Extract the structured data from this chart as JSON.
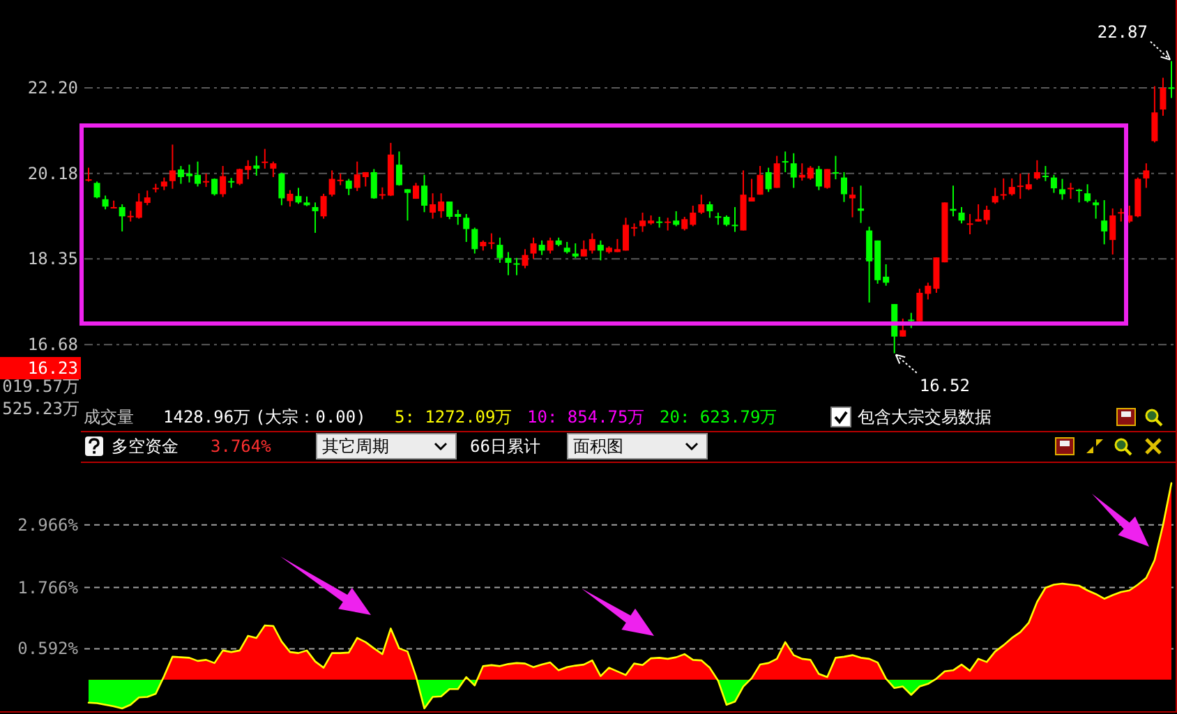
{
  "chart_data": [
    {
      "type": "candlestick",
      "categories": [
        null,
        null,
        null,
        null,
        null,
        null,
        null,
        null,
        null,
        null,
        null,
        null,
        null,
        null,
        null,
        null,
        null,
        null,
        null,
        null,
        null,
        null,
        null,
        null,
        null,
        null,
        null,
        null,
        null,
        null,
        null,
        null,
        null,
        null,
        null,
        null,
        null,
        null,
        null,
        null,
        null,
        null,
        null,
        null,
        null,
        null,
        null,
        null,
        null,
        null,
        null,
        null,
        null,
        null,
        null,
        null,
        null,
        null,
        null,
        null,
        null,
        null,
        null,
        null,
        null,
        null,
        null,
        null,
        null,
        null,
        null,
        null,
        null,
        null,
        null,
        null,
        null,
        null,
        null,
        null,
        null,
        null,
        null,
        null,
        null,
        null,
        null,
        null,
        null,
        null,
        null,
        null,
        null,
        null,
        null,
        null,
        null,
        null,
        null,
        null,
        null,
        null,
        null,
        null,
        null,
        null,
        null,
        null,
        null,
        null,
        null,
        null,
        null,
        null,
        null,
        null,
        null,
        null,
        null,
        null,
        null,
        null,
        null,
        null,
        null,
        null,
        null,
        null,
        null,
        null
      ],
      "ohlc": [
        [
          20.02,
          20.31,
          20.0,
          20.05
        ],
        [
          19.97,
          20.0,
          19.63,
          19.65
        ],
        [
          19.61,
          19.69,
          19.39,
          19.45
        ],
        [
          19.42,
          19.58,
          19.41,
          19.44
        ],
        [
          19.44,
          19.5,
          18.92,
          19.24
        ],
        [
          19.23,
          19.36,
          19.13,
          19.25
        ],
        [
          19.21,
          19.74,
          19.19,
          19.56
        ],
        [
          19.53,
          19.8,
          19.48,
          19.65
        ],
        [
          19.84,
          19.95,
          19.76,
          19.86
        ],
        [
          19.89,
          20.09,
          19.81,
          20.0
        ],
        [
          20.01,
          20.84,
          19.84,
          20.25
        ],
        [
          20.27,
          20.35,
          19.95,
          20.1
        ],
        [
          20.18,
          20.38,
          19.98,
          20.12
        ],
        [
          20.15,
          20.45,
          19.89,
          19.95
        ],
        [
          19.99,
          20.18,
          19.88,
          20.01
        ],
        [
          20.06,
          20.07,
          19.69,
          19.72
        ],
        [
          19.72,
          20.35,
          19.66,
          20.12
        ],
        [
          20.01,
          20.08,
          19.86,
          19.99
        ],
        [
          19.95,
          20.29,
          19.92,
          20.28
        ],
        [
          20.26,
          20.48,
          20.05,
          20.35
        ],
        [
          20.36,
          20.58,
          20.13,
          20.29
        ],
        [
          20.42,
          20.74,
          20.29,
          20.45
        ],
        [
          20.29,
          20.45,
          20.1,
          20.41
        ],
        [
          20.18,
          20.2,
          19.48,
          19.63
        ],
        [
          19.57,
          19.81,
          19.45,
          19.73
        ],
        [
          19.68,
          19.86,
          19.51,
          19.54
        ],
        [
          19.54,
          19.67,
          19.46,
          19.48
        ],
        [
          19.44,
          19.54,
          18.89,
          19.35
        ],
        [
          19.24,
          19.73,
          19.19,
          19.68
        ],
        [
          19.71,
          20.25,
          19.67,
          20.06
        ],
        [
          20.02,
          20.18,
          19.92,
          20.04
        ],
        [
          20.02,
          20.06,
          19.7,
          19.84
        ],
        [
          19.86,
          20.45,
          19.79,
          20.16
        ],
        [
          20.1,
          20.21,
          19.89,
          20.21
        ],
        [
          20.21,
          20.28,
          19.62,
          19.63
        ],
        [
          19.7,
          19.87,
          19.61,
          19.72
        ],
        [
          19.69,
          20.88,
          19.68,
          20.61
        ],
        [
          20.38,
          20.68,
          19.91,
          19.92
        ],
        [
          19.83,
          19.83,
          19.15,
          19.75
        ],
        [
          19.62,
          19.97,
          19.62,
          19.91
        ],
        [
          19.91,
          20.15,
          19.33,
          19.47
        ],
        [
          19.32,
          19.74,
          19.19,
          19.5
        ],
        [
          19.35,
          19.74,
          19.21,
          19.56
        ],
        [
          19.56,
          19.56,
          19.18,
          19.23
        ],
        [
          19.29,
          19.38,
          19.06,
          19.23
        ],
        [
          19.21,
          19.29,
          18.7,
          18.97
        ],
        [
          18.97,
          19.0,
          18.46,
          18.55
        ],
        [
          18.61,
          18.73,
          18.52,
          18.7
        ],
        [
          18.67,
          18.88,
          18.55,
          18.69
        ],
        [
          18.64,
          18.79,
          18.27,
          18.37
        ],
        [
          18.37,
          18.49,
          18.02,
          18.27
        ],
        [
          18.26,
          18.37,
          18.02,
          18.24
        ],
        [
          18.21,
          18.55,
          18.16,
          18.43
        ],
        [
          18.46,
          18.79,
          18.35,
          18.67
        ],
        [
          18.64,
          18.73,
          18.43,
          18.52
        ],
        [
          18.52,
          18.79,
          18.46,
          18.73
        ],
        [
          18.73,
          18.79,
          18.61,
          18.64
        ],
        [
          18.58,
          18.7,
          18.46,
          18.49
        ],
        [
          18.46,
          18.67,
          18.37,
          18.4
        ],
        [
          18.4,
          18.73,
          18.4,
          18.55
        ],
        [
          18.52,
          18.88,
          18.46,
          18.76
        ],
        [
          18.64,
          18.73,
          18.32,
          18.52
        ],
        [
          18.49,
          18.61,
          18.46,
          18.58
        ],
        [
          18.49,
          18.76,
          18.49,
          18.55
        ],
        [
          18.52,
          19.21,
          18.52,
          19.06
        ],
        [
          18.99,
          19.09,
          18.82,
          19.01
        ],
        [
          19.03,
          19.32,
          18.91,
          19.15
        ],
        [
          19.09,
          19.26,
          19.06,
          19.15
        ],
        [
          19.13,
          19.23,
          19.0,
          19.11
        ],
        [
          19.11,
          19.21,
          18.94,
          19.13
        ],
        [
          19.15,
          19.35,
          19.03,
          19.06
        ],
        [
          18.97,
          19.23,
          18.94,
          19.18
        ],
        [
          19.06,
          19.47,
          19.03,
          19.32
        ],
        [
          19.32,
          19.71,
          19.29,
          19.5
        ],
        [
          19.5,
          19.56,
          19.21,
          19.35
        ],
        [
          19.24,
          19.32,
          19.06,
          19.22
        ],
        [
          19.23,
          19.26,
          19.03,
          19.06
        ],
        [
          19.06,
          19.44,
          18.91,
          19.04
        ],
        [
          18.94,
          20.25,
          18.94,
          19.71
        ],
        [
          19.56,
          20.06,
          19.56,
          19.65
        ],
        [
          19.71,
          20.35,
          19.71,
          20.15
        ],
        [
          20.21,
          20.31,
          19.77,
          19.83
        ],
        [
          19.86,
          20.58,
          19.86,
          20.41
        ],
        [
          20.46,
          20.68,
          20.21,
          20.43
        ],
        [
          20.41,
          20.64,
          19.86,
          20.09
        ],
        [
          20.09,
          20.41,
          20.02,
          20.15
        ],
        [
          20.07,
          20.35,
          20.04,
          20.31
        ],
        [
          20.28,
          20.35,
          19.81,
          19.89
        ],
        [
          19.86,
          20.28,
          19.84,
          20.28
        ],
        [
          20.21,
          20.58,
          20.05,
          20.19
        ],
        [
          20.09,
          20.21,
          19.55,
          19.72
        ],
        [
          19.63,
          19.88,
          19.22,
          19.71
        ],
        [
          19.41,
          19.91,
          19.1,
          19.36
        ],
        [
          18.94,
          19.02,
          17.48,
          18.3
        ],
        [
          18.73,
          18.73,
          17.85,
          17.92
        ],
        [
          17.99,
          18.24,
          17.81,
          17.87
        ],
        [
          17.45,
          17.45,
          16.52,
          16.83
        ],
        [
          16.83,
          17.17,
          16.83,
          16.95
        ],
        [
          17.15,
          17.28,
          16.99,
          17.14
        ],
        [
          17.12,
          17.75,
          17.12,
          17.67
        ],
        [
          17.65,
          17.87,
          17.54,
          17.81
        ],
        [
          17.75,
          18.38,
          17.67,
          18.38
        ],
        [
          18.28,
          19.54,
          18.28,
          19.54
        ],
        [
          19.4,
          19.91,
          19.24,
          19.36
        ],
        [
          19.32,
          19.44,
          19.09,
          19.15
        ],
        [
          19.07,
          19.29,
          18.86,
          19.09
        ],
        [
          19.13,
          19.5,
          19.13,
          19.18
        ],
        [
          19.16,
          19.47,
          19.07,
          19.38
        ],
        [
          19.54,
          19.86,
          19.51,
          19.68
        ],
        [
          19.7,
          20.07,
          19.6,
          19.72
        ],
        [
          19.72,
          20.07,
          19.69,
          19.88
        ],
        [
          19.89,
          20.18,
          19.62,
          19.91
        ],
        [
          19.83,
          20.18,
          19.81,
          19.94
        ],
        [
          20.07,
          20.48,
          20.04,
          20.21
        ],
        [
          20.13,
          20.35,
          20.01,
          20.11
        ],
        [
          20.09,
          20.15,
          19.75,
          19.85
        ],
        [
          19.83,
          20.06,
          19.6,
          19.72
        ],
        [
          19.84,
          19.97,
          19.62,
          19.86
        ],
        [
          19.82,
          19.84,
          19.54,
          19.8
        ],
        [
          19.74,
          19.94,
          19.54,
          19.57
        ],
        [
          19.54,
          19.6,
          19.19,
          19.48
        ],
        [
          19.15,
          19.59,
          18.65,
          18.92
        ],
        [
          18.74,
          19.41,
          18.44,
          19.26
        ],
        [
          19.31,
          19.41,
          19.13,
          19.33
        ],
        [
          19.13,
          19.47,
          19.1,
          19.26
        ],
        [
          19.24,
          20.09,
          19.22,
          20.06
        ],
        [
          20.07,
          20.41,
          19.86,
          20.25
        ],
        [
          20.92,
          22.24,
          20.89,
          21.6
        ],
        [
          21.67,
          22.45,
          21.52,
          22.2
        ],
        [
          22.21,
          22.87,
          21.95,
          22.19
        ]
      ],
      "colors": [
        "#ff0000",
        "#00ff00",
        "#00ff00",
        "#ff0000",
        "#00ff00",
        "#ff0000",
        "#ff0000",
        "#ff0000",
        "#ff0000",
        "#ff0000",
        "#ff0000",
        "#00ff00",
        "#00ff00",
        "#00ff00",
        "#ff0000",
        "#00ff00",
        "#ff0000",
        "#00ff00",
        "#ff0000",
        "#ff0000",
        "#00ff00",
        "#ff0000",
        "#ff0000",
        "#00ff00",
        "#ff0000",
        "#00ff00",
        "#00ff00",
        "#00ff00",
        "#ff0000",
        "#ff0000",
        "#ff0000",
        "#00ff00",
        "#ff0000",
        "#ff0000",
        "#00ff00",
        "#ff0000",
        "#ff0000",
        "#00ff00",
        "#00ff00",
        "#ff0000",
        "#00ff00",
        "#ff0000",
        "#ff0000",
        "#00ff00",
        "#00ff00",
        "#00ff00",
        "#00ff00",
        "#ff0000",
        "#ff0000",
        "#00ff00",
        "#00ff00",
        "#00ff00",
        "#ff0000",
        "#ff0000",
        "#00ff00",
        "#ff0000",
        "#00ff00",
        "#00ff00",
        "#00ff00",
        "#ff0000",
        "#ff0000",
        "#00ff00",
        "#ff0000",
        "#ff0000",
        "#ff0000",
        "#ff0000",
        "#ff0000",
        "#ff0000",
        "#00ff00",
        "#ff0000",
        "#00ff00",
        "#ff0000",
        "#ff0000",
        "#ff0000",
        "#00ff00",
        "#00ff00",
        "#00ff00",
        "#00ff00",
        "#ff0000",
        "#ff0000",
        "#ff0000",
        "#00ff00",
        "#ff0000",
        "#00ff00",
        "#00ff00",
        "#ff0000",
        "#ff0000",
        "#00ff00",
        "#ff0000",
        "#00ff00",
        "#00ff00",
        "#ff0000",
        "#00ff00",
        "#00ff00",
        "#00ff00",
        "#00ff00",
        "#00ff00",
        "#ff0000",
        "#00ff00",
        "#ff0000",
        "#ff0000",
        "#ff0000",
        "#ff0000",
        "#00ff00",
        "#00ff00",
        "#ff0000",
        "#ff0000",
        "#ff0000",
        "#ff0000",
        "#ff0000",
        "#ff0000",
        "#ff0000",
        "#ff0000",
        "#ff0000",
        "#00ff00",
        "#00ff00",
        "#00ff00",
        "#ff0000",
        "#00ff00",
        "#00ff00",
        "#00ff00",
        "#00ff00",
        "#ff0000",
        "#ff0000",
        "#ff0000",
        "#ff0000",
        "#ff0000",
        "#ff0000",
        "#ff0000",
        "#00ff00"
      ],
      "log": "y",
      "ylim": [
        15.14,
        24.48
      ],
      "yticks": [
        {
          "value": 22.2,
          "label": "22.20"
        },
        20.18,
        18.35,
        16.68
      ],
      "grid": "y",
      "tick_labels": "y",
      "annotations": [
        "22.87",
        "16.52",
        "16.23"
      ]
    },
    {
      "type": "other",
      "annotations": [
        "成交量",
        "1428.96万",
        "(大宗：0.00)",
        "5: 1272.09万",
        "10: 854.75万",
        "20: 623.79万",
        "包含大宗交易数据",
        "019.57万",
        "525.23万"
      ]
    },
    {
      "type": "area",
      "title": "多空资金",
      "categories": [
        null,
        null,
        null,
        null,
        null,
        null,
        null,
        null,
        null,
        null,
        null,
        null,
        null,
        null,
        null,
        null,
        null,
        null,
        null,
        null,
        null,
        null,
        null,
        null,
        null,
        null,
        null,
        null,
        null,
        null,
        null,
        null,
        null,
        null,
        null,
        null,
        null,
        null,
        null,
        null,
        null,
        null,
        null,
        null,
        null,
        null,
        null,
        null,
        null,
        null,
        null,
        null,
        null,
        null,
        null,
        null,
        null,
        null,
        null,
        null,
        null,
        null,
        null,
        null,
        null,
        null,
        null,
        null,
        null,
        null,
        null,
        null,
        null,
        null,
        null,
        null,
        null,
        null,
        null,
        null,
        null,
        null,
        null,
        null,
        null,
        null,
        null,
        null,
        null,
        null,
        null,
        null,
        null,
        null,
        null,
        null,
        null,
        null,
        null,
        null,
        null,
        null,
        null,
        null,
        null,
        null,
        null,
        null,
        null,
        null,
        null,
        null,
        null,
        null,
        null,
        null,
        null,
        null,
        null,
        null,
        null,
        null,
        null,
        null,
        null,
        null,
        null,
        null,
        null,
        null
      ],
      "values": [
        -0.44,
        -0.45,
        -0.48,
        -0.51,
        -0.55,
        -0.48,
        -0.34,
        -0.33,
        -0.27,
        0.07,
        0.44,
        0.43,
        0.42,
        0.36,
        0.38,
        0.32,
        0.56,
        0.53,
        0.56,
        0.84,
        0.8,
        1.04,
        1.03,
        0.73,
        0.53,
        0.51,
        0.56,
        0.35,
        0.23,
        0.51,
        0.51,
        0.52,
        0.8,
        0.72,
        0.6,
        0.49,
        0.98,
        0.6,
        0.54,
        0.07,
        -0.55,
        -0.33,
        -0.32,
        -0.18,
        -0.18,
        0.05,
        -0.11,
        0.26,
        0.28,
        0.26,
        0.3,
        0.32,
        0.31,
        0.24,
        0.29,
        0.33,
        0.18,
        0.24,
        0.27,
        0.29,
        0.37,
        0.07,
        0.23,
        0.16,
        0.09,
        0.31,
        0.28,
        0.41,
        0.42,
        0.4,
        0.43,
        0.49,
        0.38,
        0.37,
        0.23,
        -0.02,
        -0.48,
        -0.42,
        -0.13,
        0.03,
        0.29,
        0.32,
        0.4,
        0.72,
        0.47,
        0.4,
        0.38,
        0.11,
        0.05,
        0.42,
        0.44,
        0.47,
        0.42,
        0.4,
        0.33,
        0.02,
        -0.16,
        -0.13,
        -0.29,
        -0.13,
        -0.08,
        0.02,
        0.16,
        0.18,
        0.29,
        0.17,
        0.4,
        0.34,
        0.54,
        0.66,
        0.8,
        0.91,
        1.09,
        1.49,
        1.76,
        1.82,
        1.84,
        1.82,
        1.8,
        1.71,
        1.64,
        1.55,
        1.62,
        1.68,
        1.71,
        1.82,
        1.95,
        2.29,
        2.96,
        3.764
      ],
      "color": "#ffff00",
      "colors": [
        "#00ff00",
        "#00ff00",
        "#00ff00",
        "#00ff00",
        "#00ff00",
        "#00ff00",
        "#00ff00",
        "#00ff00",
        "#00ff00",
        "#ff0000",
        "#ff0000",
        "#ff0000",
        "#ff0000",
        "#ff0000",
        "#ff0000",
        "#ff0000",
        "#ff0000",
        "#ff0000",
        "#ff0000",
        "#ff0000",
        "#ff0000",
        "#ff0000",
        "#ff0000",
        "#ff0000",
        "#ff0000",
        "#ff0000",
        "#ff0000",
        "#ff0000",
        "#ff0000",
        "#ff0000",
        "#ff0000",
        "#ff0000",
        "#ff0000",
        "#ff0000",
        "#ff0000",
        "#ff0000",
        "#ff0000",
        "#ff0000",
        "#ff0000",
        "#ff0000",
        "#00ff00",
        "#00ff00",
        "#00ff00",
        "#00ff00",
        "#00ff00",
        "#ff0000",
        "#00ff00",
        "#ff0000",
        "#ff0000",
        "#ff0000",
        "#ff0000",
        "#ff0000",
        "#ff0000",
        "#ff0000",
        "#ff0000",
        "#ff0000",
        "#ff0000",
        "#ff0000",
        "#ff0000",
        "#ff0000",
        "#ff0000",
        "#ff0000",
        "#ff0000",
        "#ff0000",
        "#ff0000",
        "#ff0000",
        "#ff0000",
        "#ff0000",
        "#ff0000",
        "#ff0000",
        "#ff0000",
        "#ff0000",
        "#ff0000",
        "#ff0000",
        "#ff0000",
        "#00ff00",
        "#00ff00",
        "#00ff00",
        "#00ff00",
        "#ff0000",
        "#ff0000",
        "#ff0000",
        "#ff0000",
        "#ff0000",
        "#ff0000",
        "#ff0000",
        "#ff0000",
        "#ff0000",
        "#ff0000",
        "#ff0000",
        "#ff0000",
        "#ff0000",
        "#ff0000",
        "#ff0000",
        "#ff0000",
        "#ff0000",
        "#00ff00",
        "#00ff00",
        "#00ff00",
        "#00ff00",
        "#00ff00",
        "#ff0000",
        "#ff0000",
        "#ff0000",
        "#ff0000",
        "#ff0000",
        "#ff0000",
        "#ff0000",
        "#ff0000",
        "#ff0000",
        "#ff0000",
        "#ff0000",
        "#ff0000",
        "#ff0000",
        "#ff0000",
        "#ff0000",
        "#ff0000",
        "#ff0000",
        "#ff0000",
        "#ff0000",
        "#ff0000",
        "#ff0000",
        "#ff0000",
        "#ff0000",
        "#ff0000",
        "#ff0000",
        "#ff0000",
        "#ff0000",
        "#ff0000",
        "#ff0000"
      ],
      "ylim": [
        -0.63,
        4.15
      ],
      "yticks": [
        {
          "value": 2.966,
          "label": "2.966%"
        },
        {
          "value": 1.766,
          "label": "1.766%"
        },
        {
          "value": 0.592,
          "label": "0.592%"
        }
      ],
      "grid": "y",
      "tick_labels": "y",
      "annotations": [
        "3.764%",
        "其它周期",
        "66日累计",
        "面积图"
      ]
    }
  ]
}
